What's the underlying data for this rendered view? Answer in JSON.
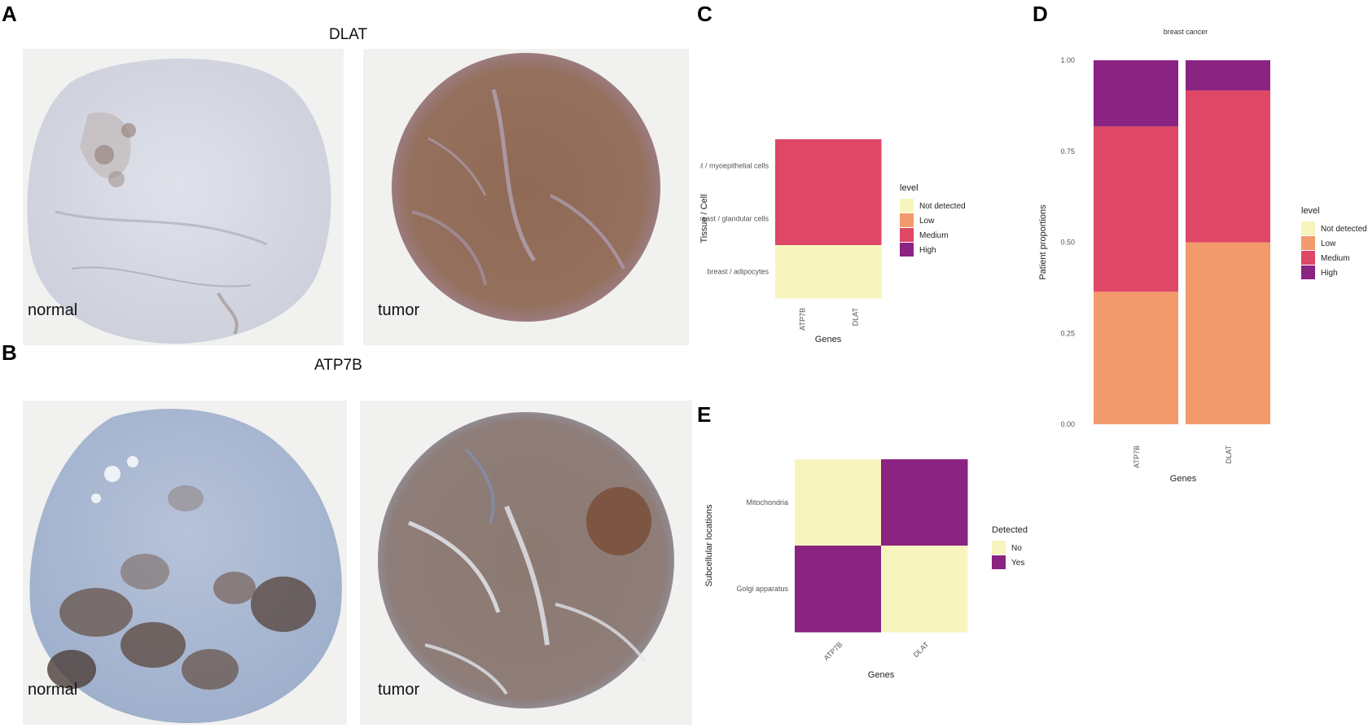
{
  "panels": {
    "A": {
      "letter": "A",
      "gene": "DLAT",
      "left_caption": "normal",
      "right_caption": "tumor"
    },
    "B": {
      "letter": "B",
      "gene": "ATP7B",
      "left_caption": "normal",
      "right_caption": "tumor"
    },
    "C": {
      "letter": "C"
    },
    "D": {
      "letter": "D"
    },
    "E": {
      "letter": "E"
    }
  },
  "colors": {
    "not_detected": "#f7f5bd",
    "low": "#f29a6b",
    "medium": "#de4766",
    "high": "#8b2382"
  },
  "chart_data": [
    {
      "id": "C",
      "type": "heatmap",
      "xlabel": "Genes",
      "ylabel": "Tissue / Cell",
      "x": [
        "ATP7B",
        "DLAT"
      ],
      "y": [
        "breast / myoepithelial cells",
        "breast / glandular cells",
        "breast / adipocytes"
      ],
      "values": [
        [
          "Medium",
          "Medium"
        ],
        [
          "Medium",
          "Medium"
        ],
        [
          "Not detected",
          "Not detected"
        ]
      ],
      "legend": {
        "title": "level",
        "items": [
          "Not detected",
          "Low",
          "Medium",
          "High"
        ],
        "placement": "right"
      }
    },
    {
      "id": "D",
      "type": "bar",
      "stacked": true,
      "title": "breast cancer",
      "xlabel": "Genes",
      "ylabel": "Patient proportions",
      "categories": [
        "ATP7B",
        "DLAT"
      ],
      "ylim": [
        0,
        1
      ],
      "yticks": [
        "0.00",
        "0.25",
        "0.50",
        "0.75",
        "1.00"
      ],
      "series": [
        {
          "name": "Low",
          "values": [
            0.364,
            0.5
          ]
        },
        {
          "name": "Medium",
          "values": [
            0.454,
            0.417
          ]
        },
        {
          "name": "High",
          "values": [
            0.182,
            0.083
          ]
        }
      ],
      "legend": {
        "title": "level",
        "items": [
          "Not detected",
          "Low",
          "Medium",
          "High"
        ],
        "placement": "right"
      }
    },
    {
      "id": "E",
      "type": "heatmap",
      "xlabel": "Genes",
      "ylabel": "Subcellular locations",
      "x": [
        "ATP7B",
        "DLAT"
      ],
      "y": [
        "Mitochondria",
        "Golgi apparatus"
      ],
      "values": [
        [
          "No",
          "Yes"
        ],
        [
          "Yes",
          "No"
        ]
      ],
      "legend": {
        "title": "Detected",
        "items": [
          "No",
          "Yes"
        ],
        "placement": "right"
      }
    }
  ]
}
